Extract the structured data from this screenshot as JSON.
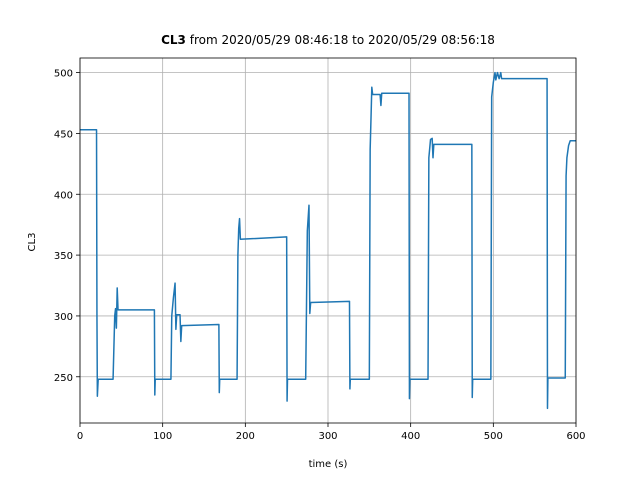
{
  "chart_data": {
    "type": "line",
    "title": {
      "bold": "CL3",
      "rest": "from 2020/05/29 08:46:18 to 2020/05/29 08:56:18"
    },
    "xlabel": "time (s)",
    "ylabel": "CL3",
    "xlim": [
      0,
      600
    ],
    "ylim": [
      212,
      512
    ],
    "xticks": [
      0,
      100,
      200,
      300,
      400,
      500,
      600
    ],
    "yticks": [
      250,
      300,
      350,
      400,
      450,
      500
    ],
    "grid": true,
    "color": "#1f77b4",
    "x": [
      0,
      20,
      20.5,
      21,
      22,
      40,
      42,
      43,
      44,
      45,
      46,
      90,
      90.5,
      91,
      110,
      111,
      113,
      115,
      116,
      117,
      121,
      122,
      123,
      168,
      168.5,
      169,
      190,
      191,
      192,
      193,
      194,
      250,
      250.5,
      251,
      273,
      275,
      277,
      278,
      279,
      326,
      326.5,
      327,
      350,
      351,
      352,
      353,
      354,
      363,
      364,
      365,
      398,
      398.5,
      399,
      421,
      422,
      424,
      426,
      427,
      428,
      474,
      474.5,
      475,
      497,
      498,
      500,
      502,
      503,
      505,
      507,
      509,
      510,
      565,
      565.5,
      566,
      587,
      588,
      589,
      591,
      593,
      600
    ],
    "values": [
      453,
      453,
      300,
      234,
      248,
      248,
      300,
      306,
      290,
      323,
      305,
      305,
      235,
      248,
      248,
      300,
      315,
      327,
      289,
      301,
      301,
      279,
      292,
      293,
      237,
      248,
      248,
      350,
      372,
      380,
      363,
      365,
      230,
      248,
      248,
      370,
      391,
      302,
      311,
      312,
      240,
      248,
      248,
      437,
      462,
      488,
      482,
      482,
      473,
      483,
      483,
      232,
      248,
      248,
      430,
      445,
      446,
      430,
      441,
      441,
      233,
      248,
      248,
      480,
      492,
      500,
      494,
      500,
      495,
      500,
      495,
      495,
      224,
      249,
      249,
      415,
      430,
      440,
      444,
      444
    ]
  }
}
